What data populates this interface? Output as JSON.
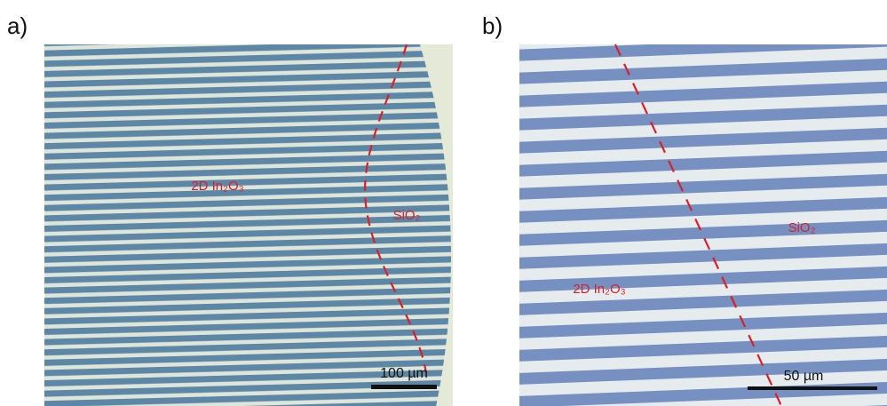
{
  "panels": [
    {
      "label": "a)",
      "material": "2D In₂O₃",
      "substrate": "SiO₂",
      "scale_bar": "100 µm"
    },
    {
      "label": "b)",
      "material": "2D In₂O₃",
      "substrate": "SiO₂",
      "scale_bar": "50 µm"
    }
  ]
}
